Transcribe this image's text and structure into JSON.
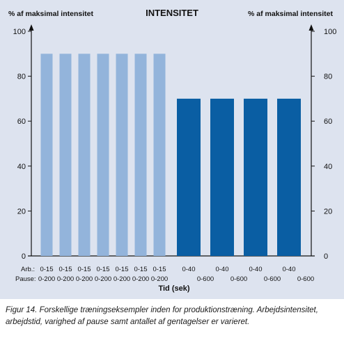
{
  "chart_data": {
    "type": "bar",
    "title": "INTENSITET",
    "ylabel_left": "% af maksimal intensitet",
    "ylabel_right": "% af maksimal intensitet",
    "xlabel": "Tid (sek)",
    "ylim": [
      0,
      100
    ],
    "yticks": [
      0,
      20,
      40,
      60,
      80,
      100
    ],
    "grid": false,
    "row_labels": {
      "work": "Arb.:",
      "pause": "Pause:"
    },
    "bars": [
      {
        "value": 90,
        "work": "0-15",
        "pause": "0-200",
        "color": "#93b4db"
      },
      {
        "value": 90,
        "work": "0-15",
        "pause": "0-200",
        "color": "#93b4db"
      },
      {
        "value": 90,
        "work": "0-15",
        "pause": "0-200",
        "color": "#93b4db"
      },
      {
        "value": 90,
        "work": "0-15",
        "pause": "0-200",
        "color": "#93b4db"
      },
      {
        "value": 90,
        "work": "0-15",
        "pause": "0-200",
        "color": "#93b4db"
      },
      {
        "value": 90,
        "work": "0-15",
        "pause": "0-200",
        "color": "#93b4db"
      },
      {
        "value": 90,
        "work": "0-15",
        "pause": "0-200",
        "color": "#93b4db"
      },
      {
        "value": 70,
        "work": "0-40",
        "pause": "0-600",
        "color": "#0a5ea3"
      },
      {
        "value": 70,
        "work": "0-40",
        "pause": "0-600",
        "color": "#0a5ea3"
      },
      {
        "value": 70,
        "work": "0-40",
        "pause": "0-600",
        "color": "#0a5ea3"
      },
      {
        "value": 70,
        "work": "0-40",
        "pause": "0-600",
        "color": "#0a5ea3"
      }
    ]
  },
  "caption": {
    "line1": "Figur 14. Forskellige træningseksempler inden for produktionstræning. Arbejdsintensitet,",
    "line2": "arbejdstid, varighed af pause samt antallet af gentagelser er varieret."
  }
}
